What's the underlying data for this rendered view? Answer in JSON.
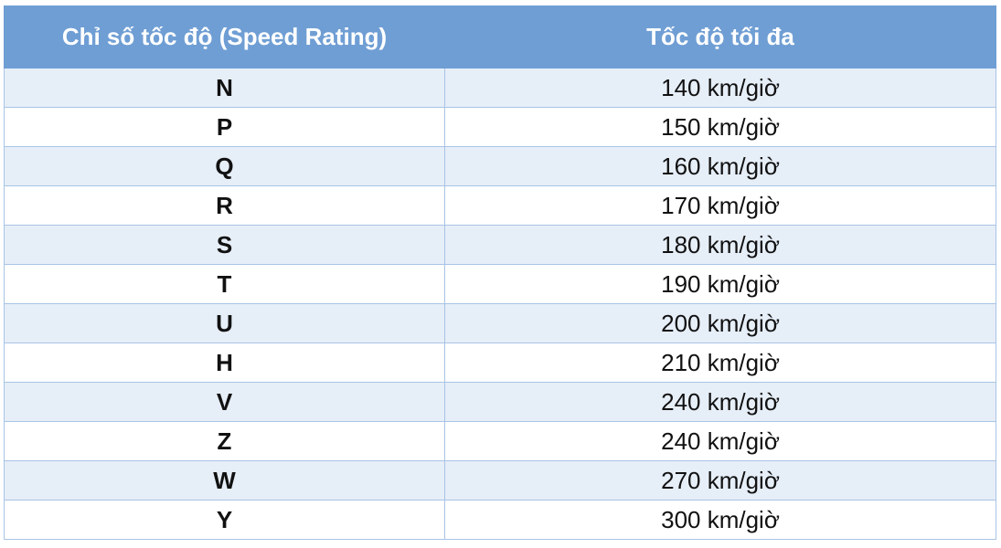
{
  "table": {
    "header": [
      "Chỉ số tốc độ (Speed Rating)",
      "Tốc độ tối đa"
    ],
    "rows": [
      [
        "N",
        "140 km/giờ"
      ],
      [
        "P",
        "150 km/giờ"
      ],
      [
        "Q",
        "160 km/giờ"
      ],
      [
        "R",
        "170 km/giờ"
      ],
      [
        "S",
        "180 km/giờ"
      ],
      [
        "T",
        "190 km/giờ"
      ],
      [
        "U",
        "200 km/giờ"
      ],
      [
        "H",
        "210 km/giờ"
      ],
      [
        "V",
        "240 km/giờ"
      ],
      [
        "Z",
        "240 km/giờ"
      ],
      [
        "W",
        "270 km/giờ"
      ],
      [
        "Y",
        "300 km/giờ"
      ]
    ]
  }
}
